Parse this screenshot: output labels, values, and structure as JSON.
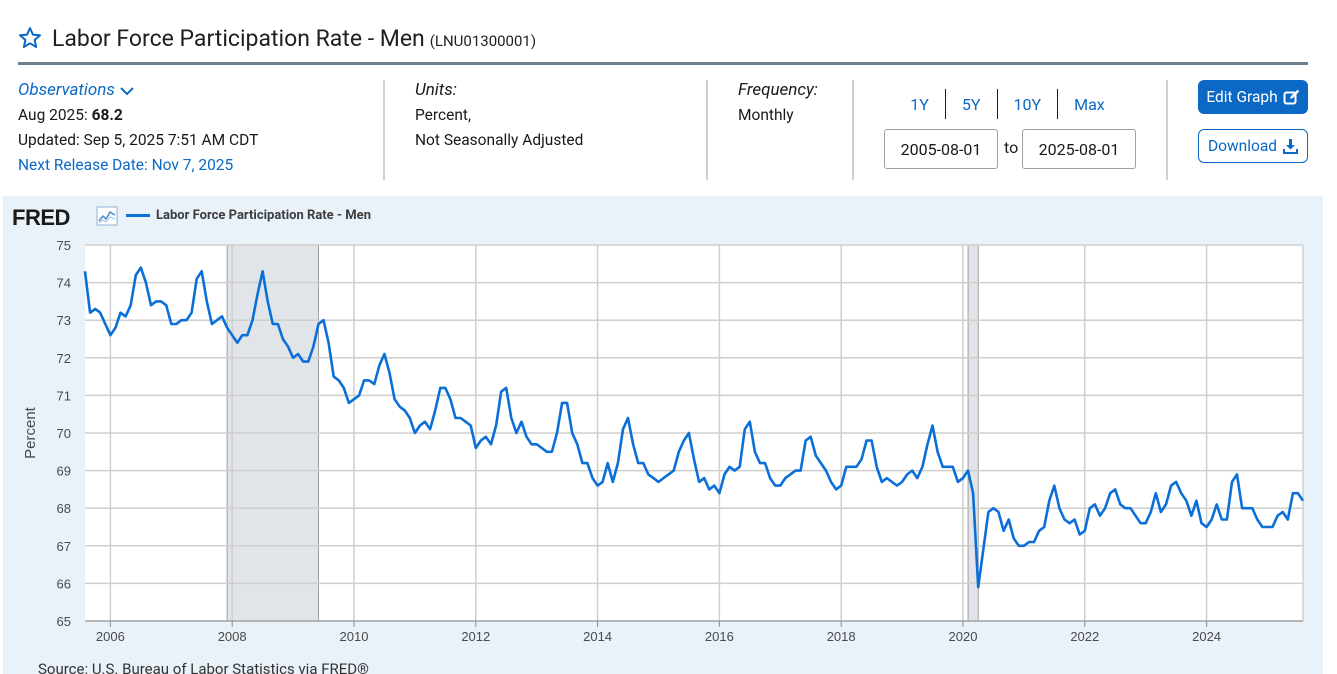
{
  "header": {
    "title": "Labor Force Participation Rate - Men",
    "series_id": "(LNU01300001)"
  },
  "observations": {
    "label": "Observations",
    "latest_date": "Aug 2025:",
    "latest_value": "68.2",
    "updated": "Updated: Sep 5, 2025 7:51 AM CDT",
    "next_release": "Next Release Date: Nov 7, 2025"
  },
  "units": {
    "label": "Units:",
    "line1": "Percent,",
    "line2": "Not Seasonally Adjusted"
  },
  "frequency": {
    "label": "Frequency:",
    "value": "Monthly"
  },
  "range": {
    "buttons": [
      "1Y",
      "5Y",
      "10Y",
      "Max"
    ],
    "start": "2005-08-01",
    "to_label": "to",
    "end": "2025-08-01"
  },
  "actions": {
    "edit_label": "Edit Graph",
    "download_label": "Download"
  },
  "chart_meta": {
    "logo_text": "FRED",
    "source": "Source: U.S. Bureau of Labor Statistics via FRED®",
    "line_color": "#0b6fd8",
    "recession_color": "#e1e5ea",
    "accent_color": "#0b68c4"
  },
  "chart_data": {
    "type": "line",
    "title": "",
    "legend": [
      "Labor Force Participation Rate - Men"
    ],
    "ylabel": "Percent",
    "xlabel": "",
    "ylim": [
      65,
      75
    ],
    "yticks": [
      "65",
      "66",
      "67",
      "68",
      "69",
      "70",
      "71",
      "72",
      "73",
      "74",
      "75"
    ],
    "xticks": [
      "2006",
      "2008",
      "2010",
      "2012",
      "2014",
      "2016",
      "2018",
      "2020",
      "2022",
      "2024"
    ],
    "grid": true,
    "recessions": [
      [
        "2007-12",
        "2009-06"
      ],
      [
        "2020-02",
        "2020-04"
      ]
    ],
    "series": [
      {
        "name": "Labor Force Participation Rate - Men",
        "x": [
          "2005-08",
          "2005-09",
          "2005-10",
          "2005-11",
          "2005-12",
          "2006-01",
          "2006-02",
          "2006-03",
          "2006-04",
          "2006-05",
          "2006-06",
          "2006-07",
          "2006-08",
          "2006-09",
          "2006-10",
          "2006-11",
          "2006-12",
          "2007-01",
          "2007-02",
          "2007-03",
          "2007-04",
          "2007-05",
          "2007-06",
          "2007-07",
          "2007-08",
          "2007-09",
          "2007-10",
          "2007-11",
          "2007-12",
          "2008-01",
          "2008-02",
          "2008-03",
          "2008-04",
          "2008-05",
          "2008-06",
          "2008-07",
          "2008-08",
          "2008-09",
          "2008-10",
          "2008-11",
          "2008-12",
          "2009-01",
          "2009-02",
          "2009-03",
          "2009-04",
          "2009-05",
          "2009-06",
          "2009-07",
          "2009-08",
          "2009-09",
          "2009-10",
          "2009-11",
          "2009-12",
          "2010-01",
          "2010-02",
          "2010-03",
          "2010-04",
          "2010-05",
          "2010-06",
          "2010-07",
          "2010-08",
          "2010-09",
          "2010-10",
          "2010-11",
          "2010-12",
          "2011-01",
          "2011-02",
          "2011-03",
          "2011-04",
          "2011-05",
          "2011-06",
          "2011-07",
          "2011-08",
          "2011-09",
          "2011-10",
          "2011-11",
          "2011-12",
          "2012-01",
          "2012-02",
          "2012-03",
          "2012-04",
          "2012-05",
          "2012-06",
          "2012-07",
          "2012-08",
          "2012-09",
          "2012-10",
          "2012-11",
          "2012-12",
          "2013-01",
          "2013-02",
          "2013-03",
          "2013-04",
          "2013-05",
          "2013-06",
          "2013-07",
          "2013-08",
          "2013-09",
          "2013-10",
          "2013-11",
          "2013-12",
          "2014-01",
          "2014-02",
          "2014-03",
          "2014-04",
          "2014-05",
          "2014-06",
          "2014-07",
          "2014-08",
          "2014-09",
          "2014-10",
          "2014-11",
          "2014-12",
          "2015-01",
          "2015-02",
          "2015-03",
          "2015-04",
          "2015-05",
          "2015-06",
          "2015-07",
          "2015-08",
          "2015-09",
          "2015-10",
          "2015-11",
          "2015-12",
          "2016-01",
          "2016-02",
          "2016-03",
          "2016-04",
          "2016-05",
          "2016-06",
          "2016-07",
          "2016-08",
          "2016-09",
          "2016-10",
          "2016-11",
          "2016-12",
          "2017-01",
          "2017-02",
          "2017-03",
          "2017-04",
          "2017-05",
          "2017-06",
          "2017-07",
          "2017-08",
          "2017-09",
          "2017-10",
          "2017-11",
          "2017-12",
          "2018-01",
          "2018-02",
          "2018-03",
          "2018-04",
          "2018-05",
          "2018-06",
          "2018-07",
          "2018-08",
          "2018-09",
          "2018-10",
          "2018-11",
          "2018-12",
          "2019-01",
          "2019-02",
          "2019-03",
          "2019-04",
          "2019-05",
          "2019-06",
          "2019-07",
          "2019-08",
          "2019-09",
          "2019-10",
          "2019-11",
          "2019-12",
          "2020-01",
          "2020-02",
          "2020-03",
          "2020-04",
          "2020-05",
          "2020-06",
          "2020-07",
          "2020-08",
          "2020-09",
          "2020-10",
          "2020-11",
          "2020-12",
          "2021-01",
          "2021-02",
          "2021-03",
          "2021-04",
          "2021-05",
          "2021-06",
          "2021-07",
          "2021-08",
          "2021-09",
          "2021-10",
          "2021-11",
          "2021-12",
          "2022-01",
          "2022-02",
          "2022-03",
          "2022-04",
          "2022-05",
          "2022-06",
          "2022-07",
          "2022-08",
          "2022-09",
          "2022-10",
          "2022-11",
          "2022-12",
          "2023-01",
          "2023-02",
          "2023-03",
          "2023-04",
          "2023-05",
          "2023-06",
          "2023-07",
          "2023-08",
          "2023-09",
          "2023-10",
          "2023-11",
          "2023-12",
          "2024-01",
          "2024-02",
          "2024-03",
          "2024-04",
          "2024-05",
          "2024-06",
          "2024-07",
          "2024-08",
          "2024-09",
          "2024-10",
          "2024-11",
          "2024-12",
          "2025-01",
          "2025-02",
          "2025-03",
          "2025-04",
          "2025-05",
          "2025-06",
          "2025-07",
          "2025-08"
        ],
        "values": [
          74.3,
          73.2,
          73.3,
          73.2,
          72.9,
          72.6,
          72.8,
          73.2,
          73.1,
          73.4,
          74.2,
          74.4,
          74.0,
          73.4,
          73.5,
          73.5,
          73.4,
          72.9,
          72.9,
          73.0,
          73.0,
          73.2,
          74.1,
          74.3,
          73.5,
          72.9,
          73.0,
          73.1,
          72.8,
          72.6,
          72.4,
          72.6,
          72.6,
          73.0,
          73.7,
          74.3,
          73.5,
          72.9,
          72.9,
          72.5,
          72.3,
          72.0,
          72.1,
          71.9,
          71.9,
          72.3,
          72.9,
          73.0,
          72.4,
          71.5,
          71.4,
          71.2,
          70.8,
          70.9,
          71.0,
          71.4,
          71.4,
          71.3,
          71.8,
          72.1,
          71.6,
          70.9,
          70.7,
          70.6,
          70.4,
          70.0,
          70.2,
          70.3,
          70.1,
          70.6,
          71.2,
          71.2,
          70.9,
          70.4,
          70.4,
          70.3,
          70.2,
          69.6,
          69.8,
          69.9,
          69.7,
          70.2,
          71.1,
          71.2,
          70.4,
          70.0,
          70.3,
          69.9,
          69.7,
          69.7,
          69.6,
          69.5,
          69.5,
          70.0,
          70.8,
          70.8,
          70.0,
          69.7,
          69.2,
          69.2,
          68.8,
          68.6,
          68.7,
          69.2,
          68.7,
          69.2,
          70.1,
          70.4,
          69.7,
          69.2,
          69.2,
          68.9,
          68.8,
          68.7,
          68.8,
          68.9,
          69.0,
          69.5,
          69.8,
          70.0,
          69.3,
          68.7,
          68.8,
          68.5,
          68.6,
          68.4,
          68.9,
          69.1,
          69.0,
          69.1,
          70.1,
          70.3,
          69.5,
          69.2,
          69.2,
          68.8,
          68.6,
          68.6,
          68.8,
          68.9,
          69.0,
          69.0,
          69.8,
          69.9,
          69.4,
          69.2,
          69.0,
          68.7,
          68.5,
          68.6,
          69.1,
          69.1,
          69.1,
          69.3,
          69.8,
          69.8,
          69.1,
          68.7,
          68.8,
          68.7,
          68.6,
          68.7,
          68.9,
          69.0,
          68.8,
          69.1,
          69.7,
          70.2,
          69.5,
          69.1,
          69.1,
          69.1,
          68.7,
          68.8,
          69.0,
          68.4,
          65.9,
          66.9,
          67.9,
          68.0,
          67.9,
          67.4,
          67.7,
          67.2,
          67.0,
          67.0,
          67.1,
          67.1,
          67.4,
          67.5,
          68.2,
          68.6,
          68.0,
          67.7,
          67.6,
          67.7,
          67.3,
          67.4,
          68.0,
          68.1,
          67.8,
          68.0,
          68.4,
          68.5,
          68.1,
          68.0,
          68.0,
          67.8,
          67.6,
          67.6,
          67.9,
          68.4,
          67.9,
          68.1,
          68.6,
          68.7,
          68.4,
          68.2,
          67.8,
          68.2,
          67.6,
          67.5,
          67.7,
          68.1,
          67.7,
          67.7,
          68.7,
          68.9,
          68.0,
          68.0,
          68.0,
          67.7,
          67.5,
          67.5,
          67.5,
          67.8,
          67.9,
          67.7,
          68.4,
          68.4,
          68.2
        ]
      }
    ]
  }
}
